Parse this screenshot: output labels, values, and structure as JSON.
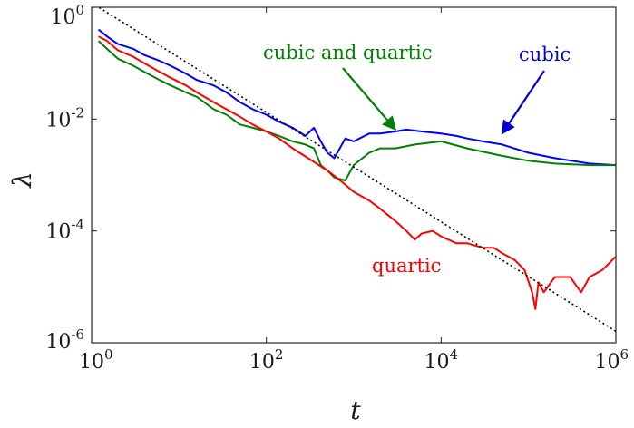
{
  "chart_data": {
    "type": "line",
    "title": "",
    "xlabel": "t",
    "ylabel": "λ",
    "xscale": "log",
    "yscale": "log",
    "xlim": [
      1,
      1000000
    ],
    "ylim": [
      1e-06,
      1
    ],
    "grid": false,
    "legend": "none",
    "x_ticks": [
      {
        "value": 1,
        "base": "10",
        "exp": "0"
      },
      {
        "value": 100,
        "base": "10",
        "exp": "2"
      },
      {
        "value": 10000,
        "base": "10",
        "exp": "4"
      },
      {
        "value": 1000000,
        "base": "10",
        "exp": "6"
      }
    ],
    "y_ticks": [
      {
        "value": 1,
        "base": "10",
        "exp": "0"
      },
      {
        "value": 0.01,
        "base": "10",
        "exp": "-2"
      },
      {
        "value": 0.0001,
        "base": "10",
        "exp": "-4"
      },
      {
        "value": 1e-06,
        "base": "10",
        "exp": "-6"
      }
    ],
    "series": [
      {
        "color": "#0000ff",
        "x": [
          1.2,
          1.5,
          2,
          3,
          4,
          6,
          8,
          12,
          16,
          25,
          35,
          50,
          70,
          100,
          140,
          200,
          280,
          350,
          420,
          500,
          600,
          800,
          1000,
          1500,
          2000,
          3000,
          4000,
          6000,
          10000,
          15000,
          20000,
          30000,
          50000,
          100000,
          200000,
          500000,
          1000000
        ],
        "y": [
          0.4,
          0.3,
          0.22,
          0.18,
          0.14,
          0.11,
          0.09,
          0.065,
          0.05,
          0.04,
          0.03,
          0.02,
          0.015,
          0.012,
          0.009,
          0.007,
          0.005,
          0.007,
          0.004,
          0.0025,
          0.002,
          0.0045,
          0.004,
          0.0055,
          0.0055,
          0.006,
          0.0065,
          0.006,
          0.0055,
          0.005,
          0.0045,
          0.004,
          0.0035,
          0.0025,
          0.002,
          0.0016,
          0.0015
        ]
      },
      {
        "color": "#008000",
        "x": [
          1.2,
          1.5,
          2,
          3,
          4,
          6,
          8,
          12,
          16,
          25,
          35,
          50,
          70,
          100,
          140,
          200,
          280,
          350,
          420,
          500,
          600,
          800,
          1000,
          1500,
          2000,
          3000,
          5000,
          10000,
          20000,
          50000,
          100000,
          200000,
          500000,
          1000000
        ],
        "y": [
          0.25,
          0.18,
          0.12,
          0.09,
          0.07,
          0.05,
          0.04,
          0.03,
          0.025,
          0.015,
          0.012,
          0.008,
          0.007,
          0.006,
          0.005,
          0.004,
          0.0035,
          0.003,
          0.0015,
          0.0012,
          0.0009,
          0.0008,
          0.0015,
          0.0025,
          0.003,
          0.003,
          0.0035,
          0.004,
          0.003,
          0.0022,
          0.0018,
          0.0016,
          0.0015,
          0.0015
        ]
      },
      {
        "color": "#ff0000",
        "x": [
          1.2,
          1.5,
          2,
          3,
          4,
          6,
          8,
          12,
          16,
          25,
          35,
          50,
          70,
          100,
          140,
          200,
          300,
          500,
          700,
          1000,
          1500,
          2000,
          3000,
          4000,
          5000,
          6000,
          8000,
          10000,
          15000,
          20000,
          30000,
          40000,
          50000,
          70000,
          90000,
          110000,
          120000,
          130000,
          150000,
          200000,
          300000,
          400000,
          500000,
          700000,
          1000000
        ],
        "y": [
          0.3,
          0.25,
          0.17,
          0.13,
          0.1,
          0.07,
          0.055,
          0.04,
          0.03,
          0.02,
          0.015,
          0.011,
          0.008,
          0.006,
          0.0045,
          0.003,
          0.002,
          0.0012,
          0.0008,
          0.0005,
          0.00035,
          0.00025,
          0.00015,
          0.0001,
          7e-05,
          9e-05,
          0.0001,
          8e-05,
          6e-05,
          6e-05,
          5e-05,
          5e-05,
          4e-05,
          3e-05,
          2e-05,
          8e-06,
          4e-06,
          1.2e-05,
          8e-06,
          1.5e-05,
          1.5e-05,
          8e-06,
          1.5e-05,
          2e-05,
          3.5e-05
        ]
      },
      {
        "color": "#000000",
        "style": "dotted",
        "x": [
          1,
          1000000
        ],
        "y": [
          1.2,
          1.6e-06
        ]
      }
    ],
    "annotations": [
      {
        "text": "cubic and quartic",
        "color": "#008000",
        "arrow_to": [
          3000,
          0.0065
        ]
      },
      {
        "text": "cubic",
        "color": "#0000cc",
        "arrow_to": [
          50000,
          0.0055
        ]
      },
      {
        "text": "quartic",
        "color": "#ff0000"
      }
    ]
  }
}
